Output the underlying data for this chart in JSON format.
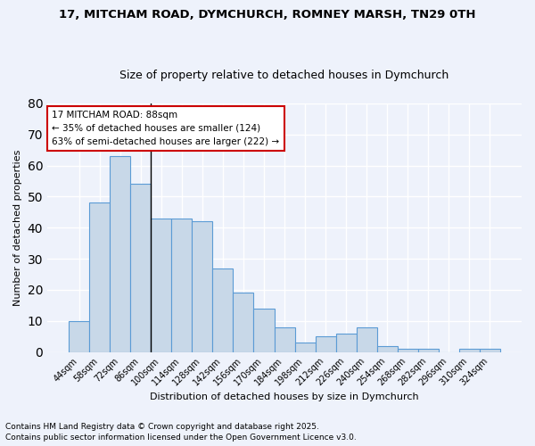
{
  "title": "17, MITCHAM ROAD, DYMCHURCH, ROMNEY MARSH, TN29 0TH",
  "subtitle": "Size of property relative to detached houses in Dymchurch",
  "xlabel": "Distribution of detached houses by size in Dymchurch",
  "ylabel": "Number of detached properties",
  "categories": [
    "44sqm",
    "58sqm",
    "72sqm",
    "86sqm",
    "100sqm",
    "114sqm",
    "128sqm",
    "142sqm",
    "156sqm",
    "170sqm",
    "184sqm",
    "198sqm",
    "212sqm",
    "226sqm",
    "240sqm",
    "254sqm",
    "268sqm",
    "282sqm",
    "296sqm",
    "310sqm",
    "324sqm"
  ],
  "values": [
    10,
    48,
    63,
    54,
    43,
    43,
    42,
    27,
    19,
    14,
    8,
    3,
    5,
    6,
    8,
    2,
    1,
    1,
    0,
    1,
    1
  ],
  "bar_color": "#c8d8e8",
  "bar_edge_color": "#5b9bd5",
  "background_color": "#eef2fb",
  "grid_color": "#ffffff",
  "annotation_box_color": "#ffffff",
  "annotation_box_edge": "#cc0000",
  "annotation_title": "17 MITCHAM ROAD: 88sqm",
  "annotation_line1": "← 35% of detached houses are smaller (124)",
  "annotation_line2": "63% of semi-detached houses are larger (222) →",
  "footnote1": "Contains HM Land Registry data © Crown copyright and database right 2025.",
  "footnote2": "Contains public sector information licensed under the Open Government Licence v3.0.",
  "ylim": [
    0,
    80
  ],
  "yticks": [
    0,
    10,
    20,
    30,
    40,
    50,
    60,
    70,
    80
  ],
  "vline_x": 3.5,
  "title_fontsize": 9.5,
  "subtitle_fontsize": 9,
  "axis_fontsize": 8,
  "tick_fontsize": 7,
  "annotation_fontsize": 7.5,
  "footnote_fontsize": 6.5
}
